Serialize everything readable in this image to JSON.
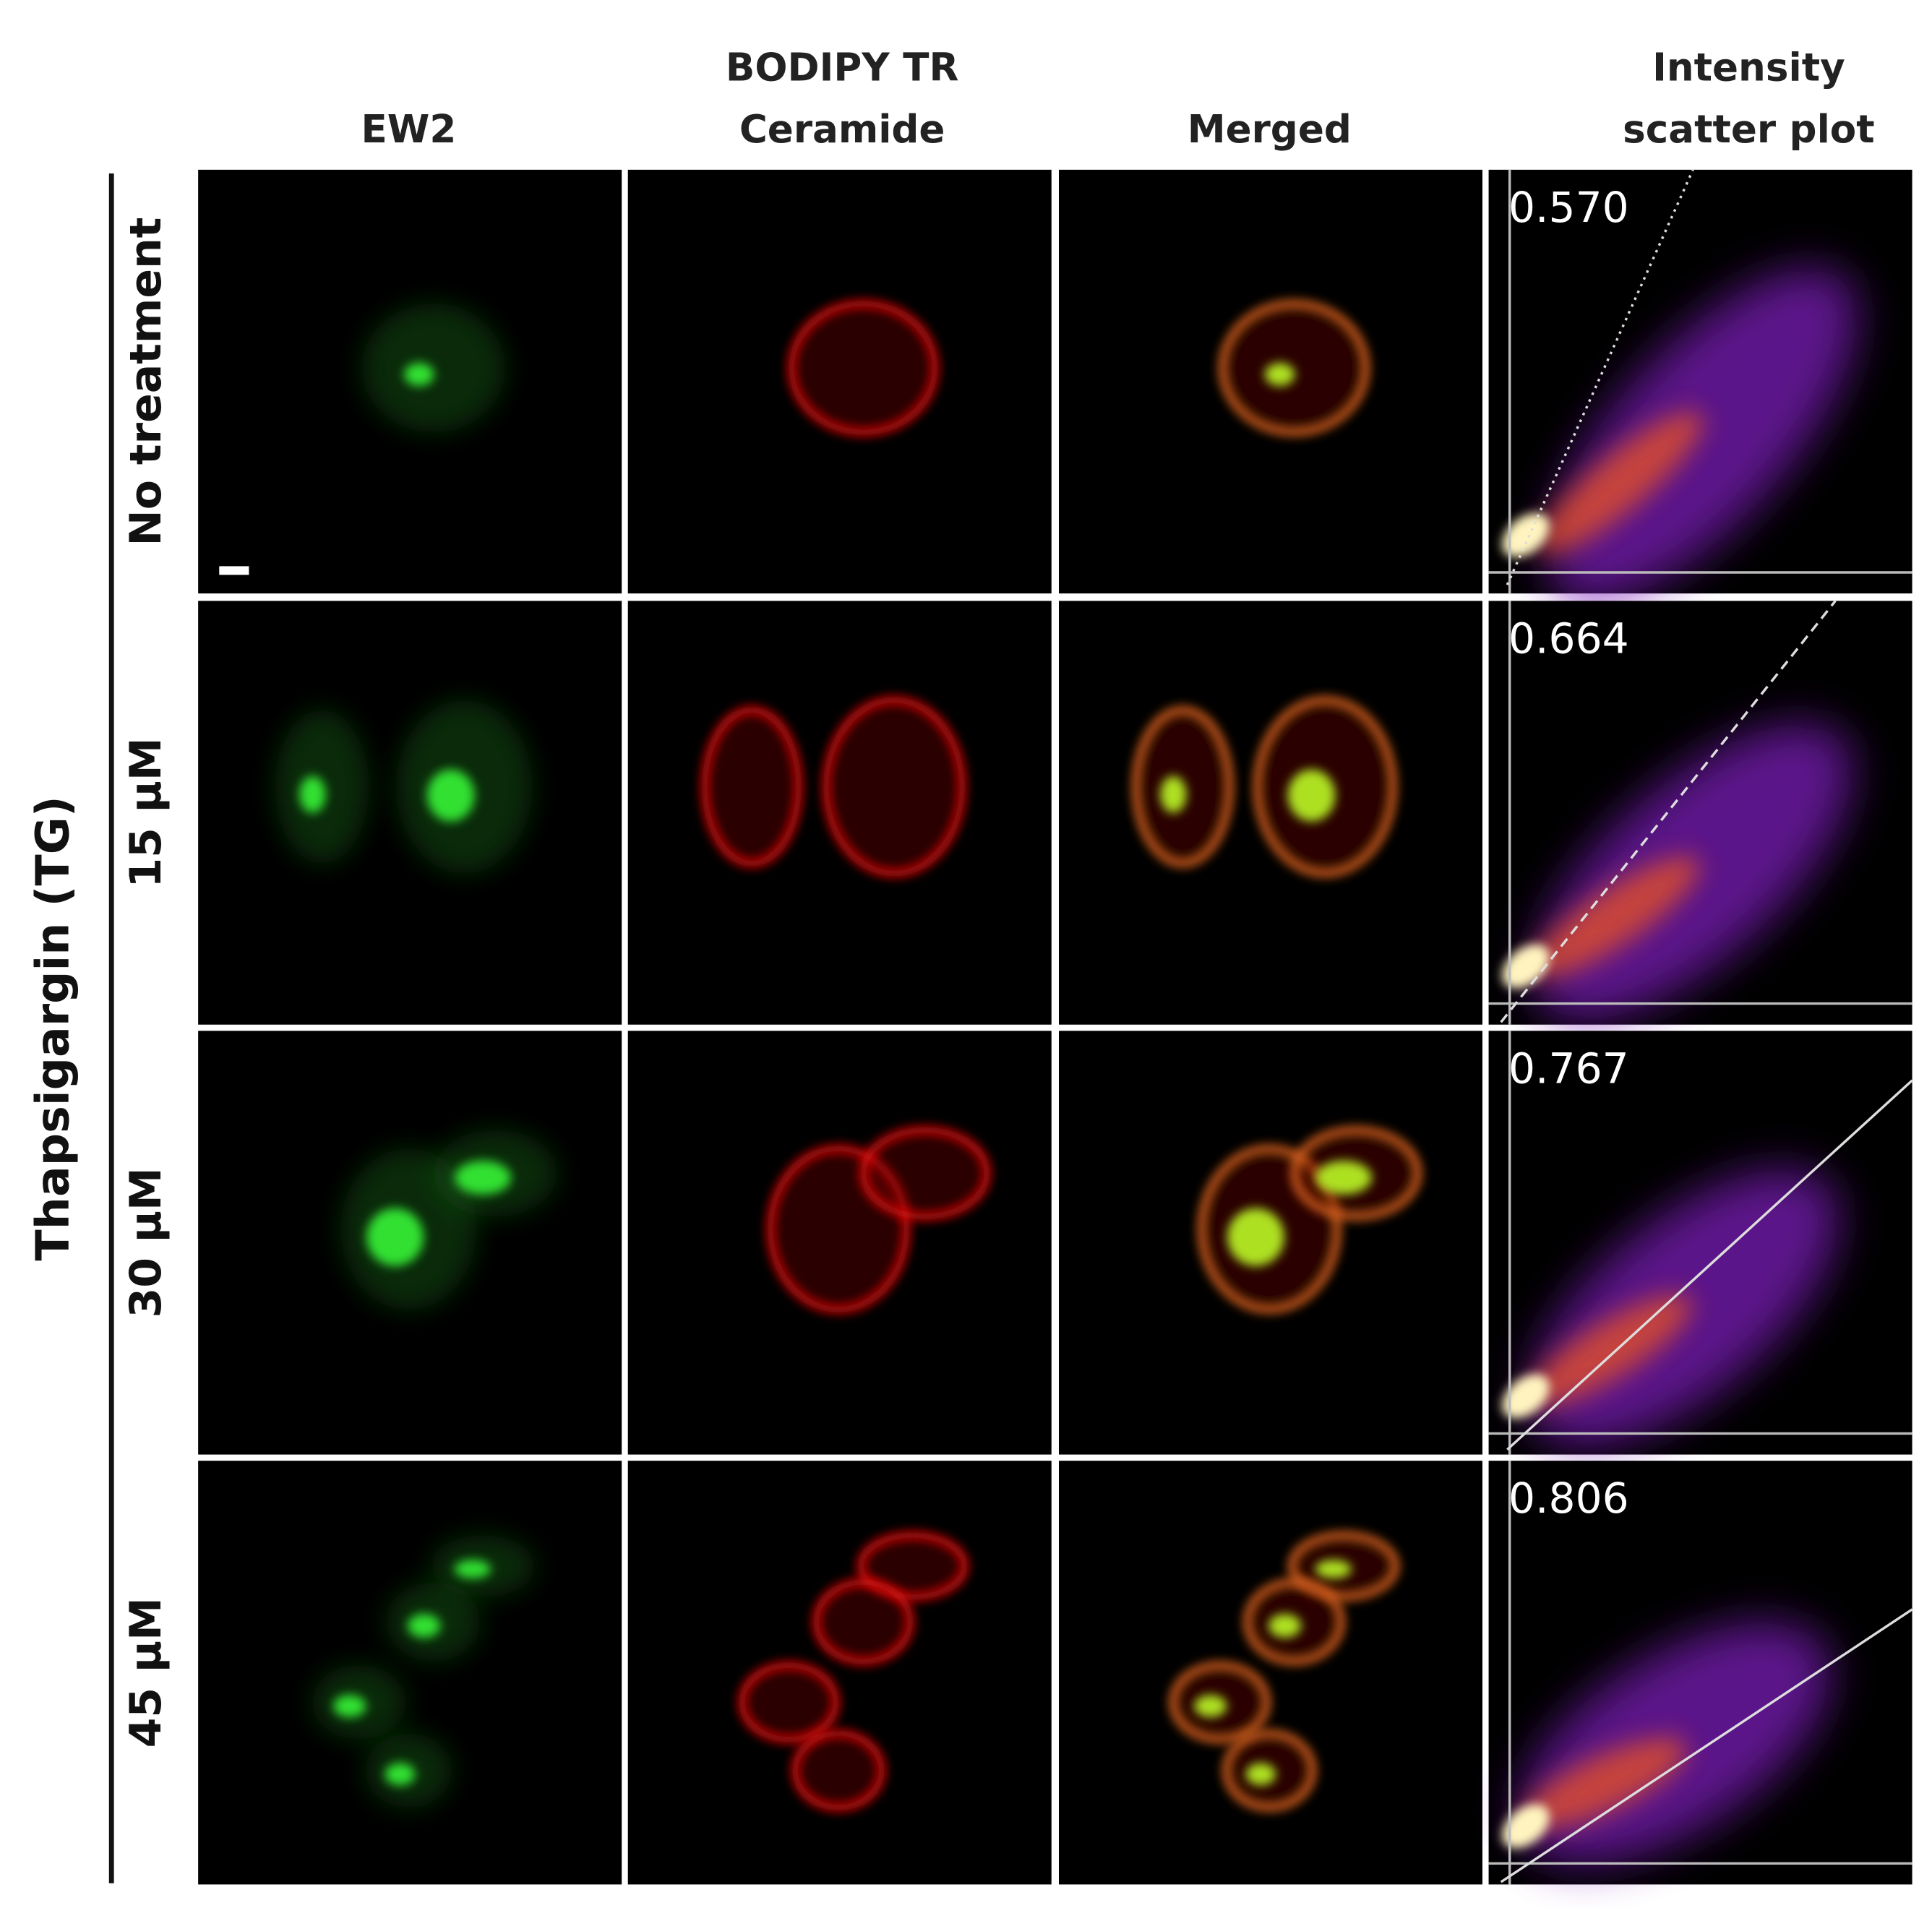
{
  "columns": [
    {
      "lines": [
        "EW2"
      ]
    },
    {
      "lines": [
        "BODIPY TR",
        "Ceramide"
      ]
    },
    {
      "lines": [
        "Merged"
      ]
    },
    {
      "lines": [
        "Intensity",
        "scatter plot"
      ]
    }
  ],
  "group_label": "Thapsigargin (TG)",
  "rows": [
    {
      "label": "No treatment",
      "coefficient": "0.570"
    },
    {
      "label": "15 µM",
      "coefficient": "0.664"
    },
    {
      "label": "30 µM",
      "coefficient": "0.767"
    },
    {
      "label": "45 µM",
      "coefficient": "0.806"
    }
  ]
}
